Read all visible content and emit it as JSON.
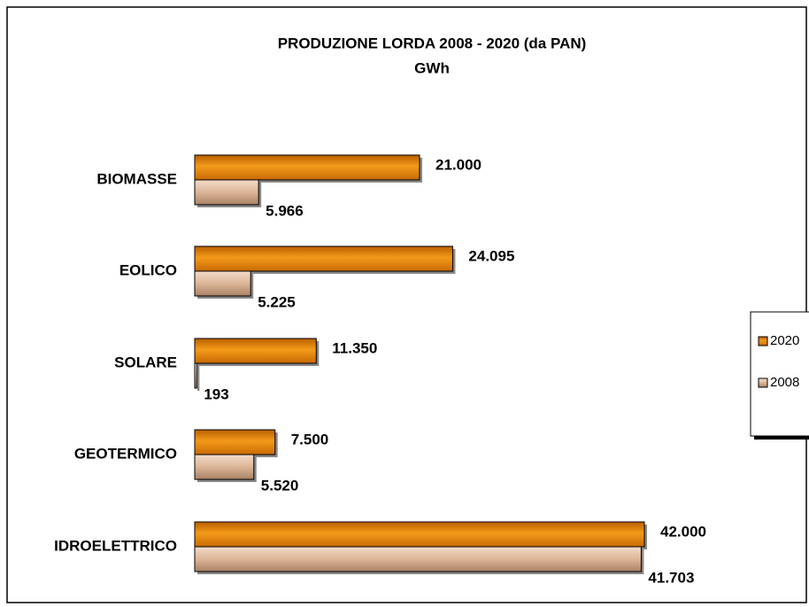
{
  "chart_data": {
    "type": "bar",
    "orientation": "horizontal",
    "title": "PRODUZIONE LORDA 2008 - 2020 (da PAN)",
    "subtitle": "GWh",
    "categories": [
      "BIOMASSE",
      "EOLICO",
      "SOLARE",
      "GEOTERMICO",
      "IDROELETTRICO"
    ],
    "series": [
      {
        "name": "2020",
        "color": "#e8870e",
        "values": [
          21000,
          24095,
          11350,
          7500,
          42000
        ],
        "value_labels": [
          "21.000",
          "24.095",
          "11.350",
          "7.500",
          "42.000"
        ]
      },
      {
        "name": "2008",
        "color": "#dcb596",
        "values": [
          5966,
          5225,
          193,
          5520,
          41703
        ],
        "value_labels": [
          "5.966",
          "5.225",
          "193",
          "5.520",
          "41.703"
        ]
      }
    ],
    "legend": "right"
  }
}
